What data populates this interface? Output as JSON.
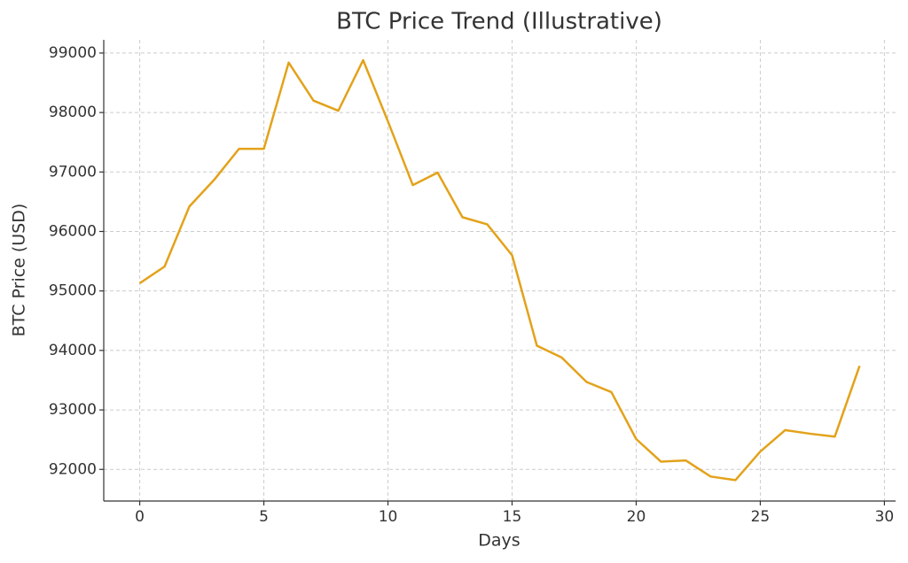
{
  "chart_data": {
    "type": "line",
    "title": "BTC Price Trend (Illustrative)",
    "x_label": "Days",
    "y_label": "BTC Price (USD)",
    "x": [
      0,
      1,
      2,
      3,
      4,
      5,
      6,
      7,
      8,
      9,
      10,
      11,
      12,
      13,
      14,
      15,
      16,
      17,
      18,
      19,
      20,
      21,
      22,
      23,
      24,
      25,
      26,
      27,
      28,
      29
    ],
    "values": [
      95130,
      95410,
      96420,
      96870,
      97390,
      97390,
      98840,
      98200,
      98030,
      98880,
      97850,
      96780,
      96990,
      96240,
      96120,
      95600,
      94080,
      93880,
      93470,
      93300,
      92510,
      92130,
      92150,
      91880,
      91820,
      92300,
      92660,
      92600,
      92550,
      93740
    ],
    "color": "#e3a21a",
    "xlim": [
      -1.45,
      30.45
    ],
    "xticks": [
      0,
      5,
      10,
      15,
      20,
      25,
      30
    ],
    "ylim": [
      91468,
      99222
    ],
    "yticks": [
      92000,
      93000,
      94000,
      95000,
      96000,
      97000,
      98000,
      99000
    ],
    "grid": true
  }
}
